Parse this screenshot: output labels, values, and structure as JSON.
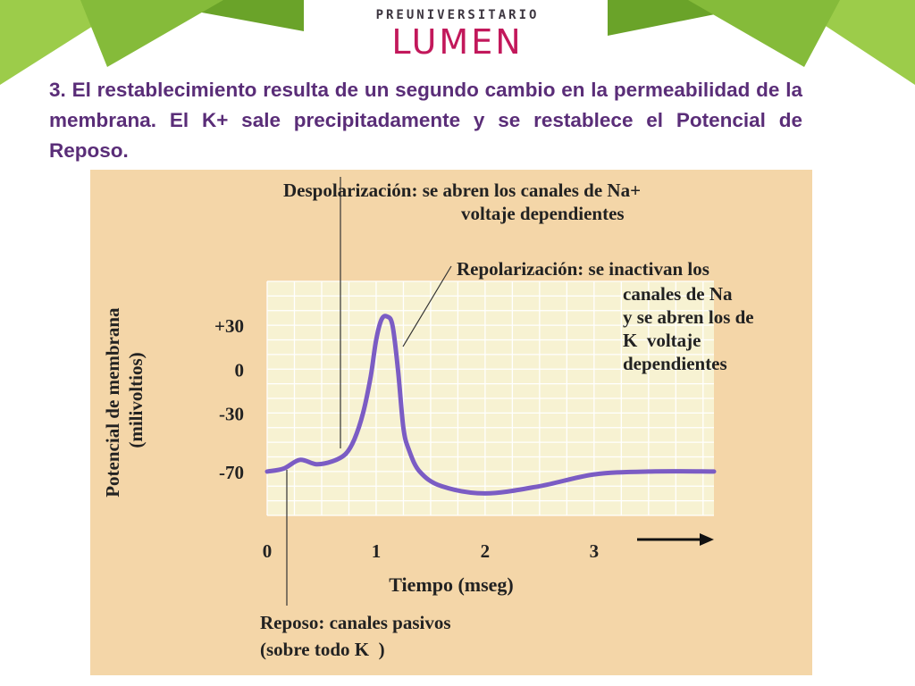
{
  "header": {
    "logo_small": "PREUNIVERSITARIO",
    "logo_big": "LUMEN"
  },
  "intro": {
    "number": "3.",
    "text": "El restablecimiento resulta de un segundo cambio en la permeabilidad de la membrana. El K+ sale precipitadamente y se restablece el Potencial de Reposo."
  },
  "colors": {
    "curve": "#7b5cc4",
    "panel": "#f4d6a8",
    "plot_area": "#f7f2d2",
    "text_purple": "#5a2d78",
    "green_light": "#9ccc4a",
    "green_dark": "#6aa329"
  },
  "chart_data": {
    "type": "line",
    "xlabel": "Tiempo (mseg)",
    "ylabel": "Potencial de membrana (milivoltios)",
    "x_ticks": [
      "0",
      "1",
      "2",
      "3"
    ],
    "y_ticks": [
      "+30",
      "0",
      "-30",
      "-70"
    ],
    "xlim": [
      0,
      4.1
    ],
    "ylim": [
      -100,
      60
    ],
    "grid": true,
    "series": [
      {
        "x": [
          0,
          0.15,
          0.3,
          0.45,
          0.6,
          0.72,
          0.8,
          0.88,
          0.95,
          1.0,
          1.05,
          1.1,
          1.15,
          1.2,
          1.25,
          1.3,
          1.4,
          1.6,
          2.0,
          2.5,
          3.0,
          3.5,
          4.1
        ],
        "y": [
          -70,
          -68,
          -62,
          -65,
          -63,
          -58,
          -48,
          -30,
          -5,
          20,
          34,
          36,
          30,
          0,
          -40,
          -55,
          -70,
          -80,
          -85,
          -80,
          -72,
          -70,
          -70
        ]
      }
    ],
    "annotations": [
      {
        "text": "Despolarización: se abren los canales de Na+"
      },
      {
        "text": "voltaje dependientes"
      },
      {
        "text": "Repolarización: se inactivan los"
      },
      {
        "text": "canales de Na"
      },
      {
        "text": "y se abren los de"
      },
      {
        "text": "K  voltaje"
      },
      {
        "text": "dependientes"
      },
      {
        "text": "Reposo: canales pasivos"
      },
      {
        "text": "(sobre todo K  )"
      }
    ]
  }
}
